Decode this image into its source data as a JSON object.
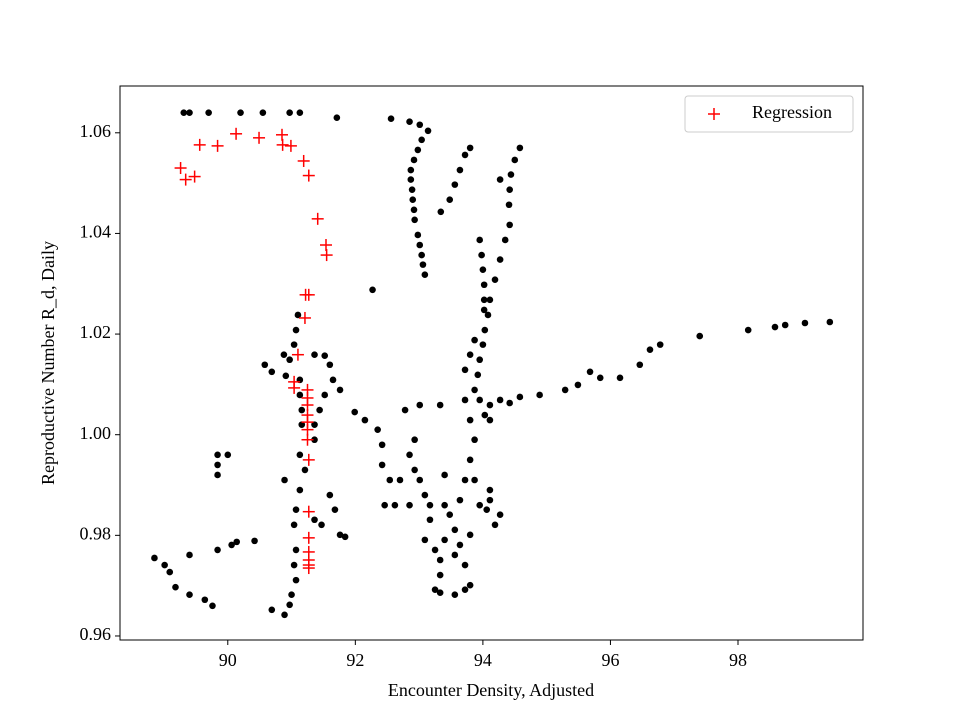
{
  "chart_data": {
    "type": "scatter",
    "xlabel": "Encounter Density, Adjusted",
    "ylabel": "Reproductive Number R_d, Daily",
    "xlim": [
      88.31,
      99.96
    ],
    "ylim": [
      0.9592,
      1.0693
    ],
    "xticks": [
      90,
      92,
      94,
      96,
      98
    ],
    "yticks": [
      0.96,
      0.98,
      {
        "value": 1,
        "label": "1.00"
      },
      1.02,
      1.04,
      1.06
    ],
    "legend": "upper right",
    "series": [
      {
        "color": "#000000",
        "marker": "o",
        "x": [
          89.31,
          89.4,
          89.7,
          90.2,
          90.55,
          90.97,
          91.13,
          91.71,
          92.56,
          92.85,
          93.01,
          93.14,
          93.04,
          92.98,
          92.92,
          92.87,
          92.87,
          92.89,
          92.9,
          92.92,
          92.93,
          92.98,
          93.01,
          93.04,
          93.06,
          93.09,
          93.8,
          93.72,
          93.64,
          93.56,
          93.48,
          93.34,
          94.58,
          94.5,
          94.44,
          94.42,
          94.41,
          94.27,
          94.42,
          94.35,
          94.27,
          94.19,
          94.11,
          94.08,
          94.03,
          94.0,
          93.95,
          93.92,
          93.87,
          93.95,
          94.11,
          94.27,
          93.95,
          93.98,
          94.0,
          94.02,
          94.02,
          94.02,
          94.11,
          94.42,
          94.58,
          94.89,
          95.29,
          95.49,
          95.68,
          95.84,
          96.15,
          96.46,
          96.62,
          96.78,
          97.4,
          98.16,
          98.58,
          98.74,
          99.05,
          99.44,
          88.85,
          89.01,
          89.09,
          89.18,
          89.4,
          89.64,
          89.76,
          89.4,
          89.84,
          90.06,
          90.14,
          90.42,
          89.84,
          89.84,
          89.84,
          90.0,
          91.1,
          91.07,
          91.04,
          90.97,
          90.91,
          91.13,
          91.13,
          91.16,
          91.16,
          91.13,
          91.21,
          91.13,
          91.07,
          91.04,
          91.07,
          91.04,
          91.07,
          91.0,
          90.97,
          90.89,
          90.69,
          90.58,
          90.69,
          90.88,
          90.89,
          91.36,
          91.52,
          91.6,
          91.65,
          91.52,
          91.44,
          91.36,
          91.36,
          91.36,
          91.47,
          91.6,
          91.68,
          91.76,
          91.84,
          91.76,
          91.99,
          92.15,
          92.35,
          92.42,
          92.42,
          92.54,
          92.7,
          92.27,
          92.78,
          93.01,
          93.33,
          92.93,
          92.85,
          92.93,
          93.01,
          93.09,
          93.17,
          93.17,
          93.09,
          93.25,
          93.33,
          93.33,
          93.25,
          93.33,
          93.56,
          93.72,
          93.8,
          93.72,
          93.64,
          93.56,
          93.64,
          93.72,
          93.8,
          93.87,
          93.8,
          93.72,
          93.72,
          93.8,
          93.87,
          93.4,
          93.48,
          93.4,
          92.85,
          92.62,
          92.46,
          94.27,
          94.19,
          94.11,
          94.06,
          93.95,
          94.11,
          94.03,
          93.87,
          93.8,
          93.4,
          93.56
        ],
        "values": [
          1.064,
          1.064,
          1.064,
          1.064,
          1.064,
          1.064,
          1.064,
          1.063,
          1.0628,
          1.0622,
          1.0616,
          1.0604,
          1.0586,
          1.0566,
          1.0546,
          1.0526,
          1.0507,
          1.0487,
          1.0467,
          1.0447,
          1.0427,
          1.0397,
          1.0377,
          1.0357,
          1.0338,
          1.0318,
          1.057,
          1.0556,
          1.0526,
          1.0497,
          1.0467,
          1.0443,
          1.057,
          1.0546,
          1.0517,
          1.0487,
          1.0457,
          1.0507,
          1.0417,
          1.0387,
          1.0348,
          1.0308,
          1.0268,
          1.0238,
          1.0208,
          1.0179,
          1.0149,
          1.0119,
          1.0089,
          1.0069,
          1.0059,
          1.0069,
          1.0387,
          1.0357,
          1.0328,
          1.0298,
          1.0268,
          1.0248,
          1.0029,
          1.0063,
          1.0075,
          1.0079,
          1.0089,
          1.0099,
          1.0125,
          1.0113,
          1.0113,
          1.0139,
          1.0169,
          1.0179,
          1.0196,
          1.0208,
          1.0214,
          1.0218,
          1.0222,
          1.0224,
          0.9755,
          0.9741,
          0.9727,
          0.9697,
          0.9682,
          0.9672,
          0.966,
          0.9761,
          0.9771,
          0.9781,
          0.9787,
          0.9789,
          0.996,
          0.994,
          0.992,
          0.996,
          1.0238,
          1.0208,
          1.0179,
          1.0149,
          1.0117,
          1.0109,
          1.0079,
          1.0049,
          1.002,
          0.996,
          0.993,
          0.989,
          0.9851,
          0.9821,
          0.9771,
          0.9741,
          0.9711,
          0.9682,
          0.9662,
          0.9642,
          0.9652,
          1.0139,
          1.0125,
          1.0159,
          0.991,
          1.0159,
          1.0157,
          1.0139,
          1.0109,
          1.0079,
          1.0049,
          1.002,
          0.999,
          0.9831,
          0.9821,
          0.988,
          0.9851,
          0.9801,
          0.9797,
          1.0089,
          1.0045,
          1.0029,
          1.001,
          0.998,
          0.994,
          0.991,
          0.991,
          1.0288,
          1.0049,
          1.0059,
          1.0059,
          0.999,
          0.996,
          0.993,
          0.991,
          0.988,
          0.986,
          0.9831,
          0.9791,
          0.9771,
          0.9751,
          0.9721,
          0.9692,
          0.9686,
          0.9682,
          0.9692,
          0.9701,
          0.9741,
          0.9781,
          0.9811,
          0.987,
          0.991,
          0.995,
          0.999,
          1.0029,
          1.0069,
          1.0129,
          1.0159,
          1.0188,
          0.992,
          0.9841,
          0.986,
          0.986,
          0.986,
          0.986,
          0.9841,
          0.9821,
          0.987,
          0.9851,
          0.986,
          0.989,
          1.0039,
          0.991,
          0.9801,
          0.9791,
          0.9761
        ]
      },
      {
        "name": "Regression",
        "color": "#ff0000",
        "marker": "+",
        "x": [
          89.26,
          89.34,
          89.48,
          89.56,
          89.84,
          90.13,
          90.49,
          90.85,
          90.86,
          90.99,
          91.19,
          91.27,
          91.41,
          91.54,
          91.55,
          91.22,
          91.27,
          91.21,
          91.1,
          91.04,
          91.04,
          91.25,
          91.25,
          91.25,
          91.25,
          91.25,
          91.25,
          91.25,
          91.27,
          91.27,
          91.27,
          91.27,
          91.27,
          91.27,
          91.27
        ],
        "values": [
          1.053,
          1.0507,
          1.0513,
          1.0576,
          1.0574,
          1.0598,
          1.059,
          1.0596,
          1.0576,
          1.0574,
          1.0544,
          1.0515,
          1.0429,
          1.0377,
          1.0357,
          1.0278,
          1.0278,
          1.0232,
          1.0159,
          1.0105,
          1.0093,
          1.0089,
          1.0073,
          1.0059,
          1.0039,
          1.0025,
          1.001,
          0.999,
          0.995,
          0.9847,
          0.9795,
          0.9767,
          0.9751,
          0.9741,
          0.9735
        ]
      }
    ]
  }
}
